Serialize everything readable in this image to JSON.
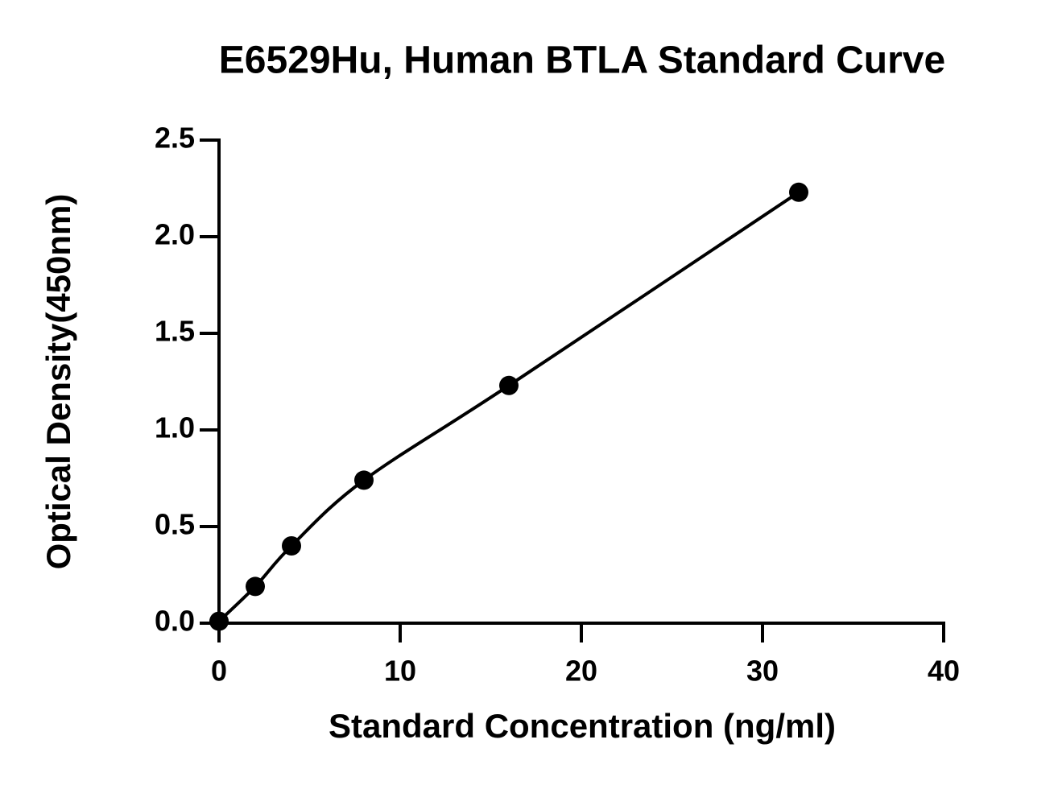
{
  "chart_data": {
    "type": "line",
    "title": "E6529Hu, Human BTLA Standard Curve",
    "x_label": "Standard Concentration (ng/ml)",
    "y_label": "Optical Density(450nm)",
    "x": [
      0,
      2,
      4,
      8,
      16,
      32
    ],
    "values": [
      0.01,
      0.19,
      0.4,
      0.74,
      1.23,
      2.23
    ],
    "color": "#000000",
    "markers": true,
    "smooth": true,
    "xlim": [
      0,
      40
    ],
    "xticks": [
      0,
      10,
      20,
      30,
      40
    ],
    "ylim": [
      0,
      2.5
    ],
    "yticks": [
      {
        "value": 0,
        "label": "0.0"
      },
      0.5,
      {
        "value": 1,
        "label": "1.0"
      },
      1.5,
      {
        "value": 2,
        "label": "2.0"
      },
      2.5
    ]
  }
}
